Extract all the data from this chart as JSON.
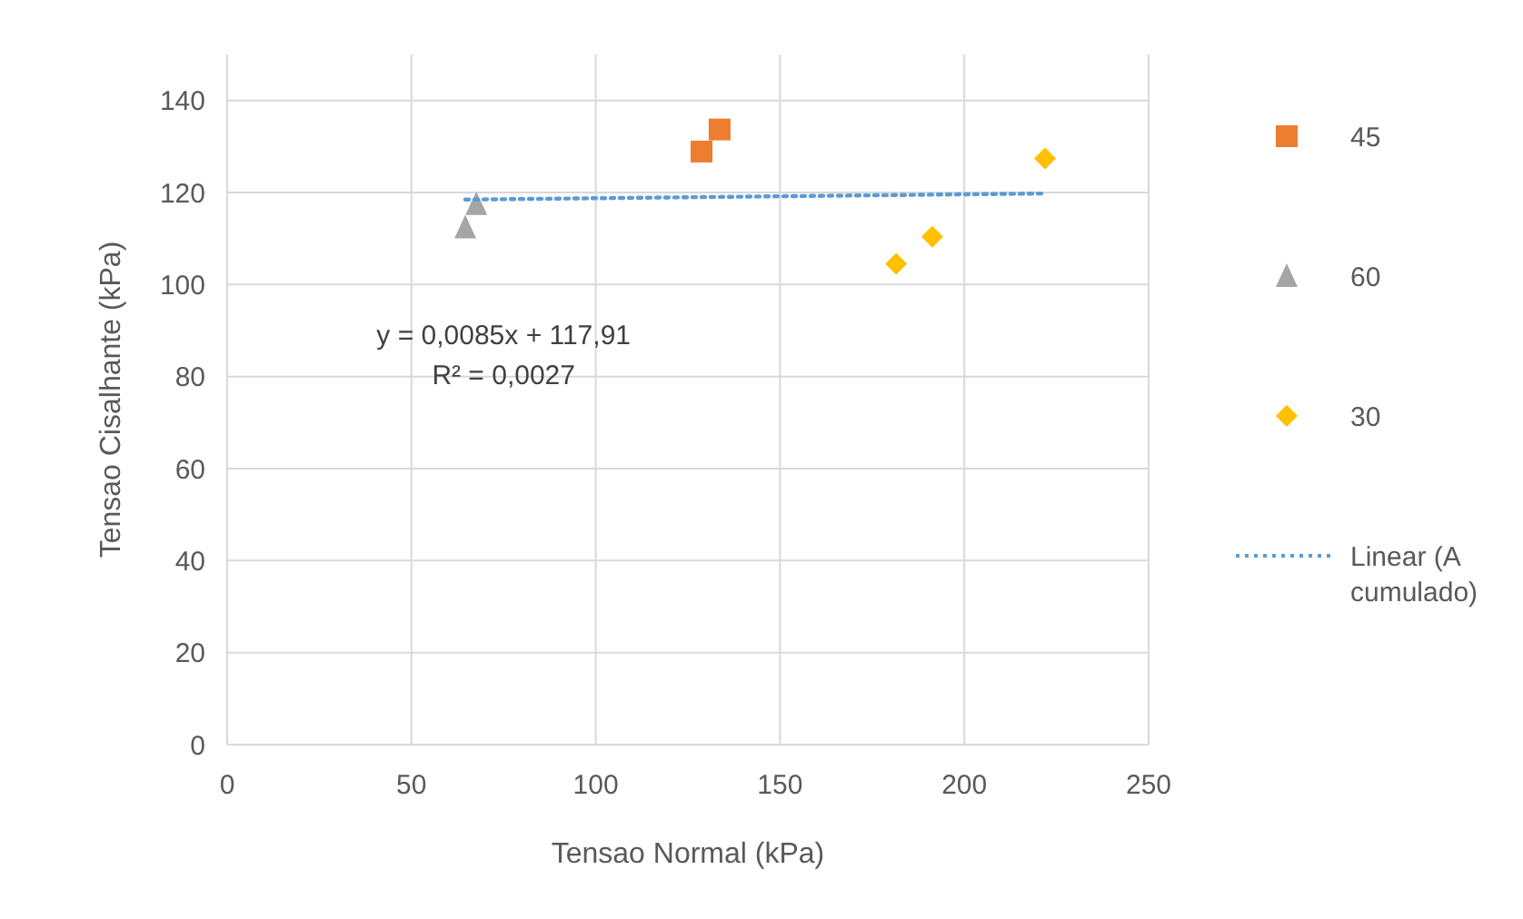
{
  "chart_data": {
    "type": "scatter",
    "xlabel": "Tensao Normal (kPa)",
    "ylabel": "Tensao Cisalhante (kPa)",
    "xlim": [
      0,
      250
    ],
    "xticks": [
      0,
      50,
      100,
      150,
      200,
      250
    ],
    "ylim": [
      0,
      150
    ],
    "yticks": [
      0,
      20,
      40,
      60,
      80,
      100,
      120,
      140
    ],
    "grid": true,
    "legend": "right",
    "annotations": [
      "y = 0,0085x + 117,91",
      "R² = 0,0027"
    ],
    "series": [
      {
        "name": "45",
        "color": "#ed7d31",
        "marker": "square",
        "x": [
          128.7,
          133.6
        ],
        "values": [
          128.9,
          133.7
        ]
      },
      {
        "name": "60",
        "color": "#a5a5a5",
        "marker": "triangle",
        "x": [
          64.6,
          67.6
        ],
        "values": [
          112.4,
          117.5
        ]
      },
      {
        "name": "30",
        "color": "#ffc000",
        "marker": "diamond",
        "x": [
          181.5,
          191.3,
          221.9
        ],
        "values": [
          104.5,
          110.4,
          127.4
        ]
      },
      {
        "name": "Linear (Acumulado)",
        "type": "line",
        "color": "#5b9bd5",
        "line_style": "dotted",
        "marker": "none",
        "x": [
          64.6,
          221.9
        ],
        "values": [
          118.46,
          119.79
        ]
      }
    ]
  }
}
